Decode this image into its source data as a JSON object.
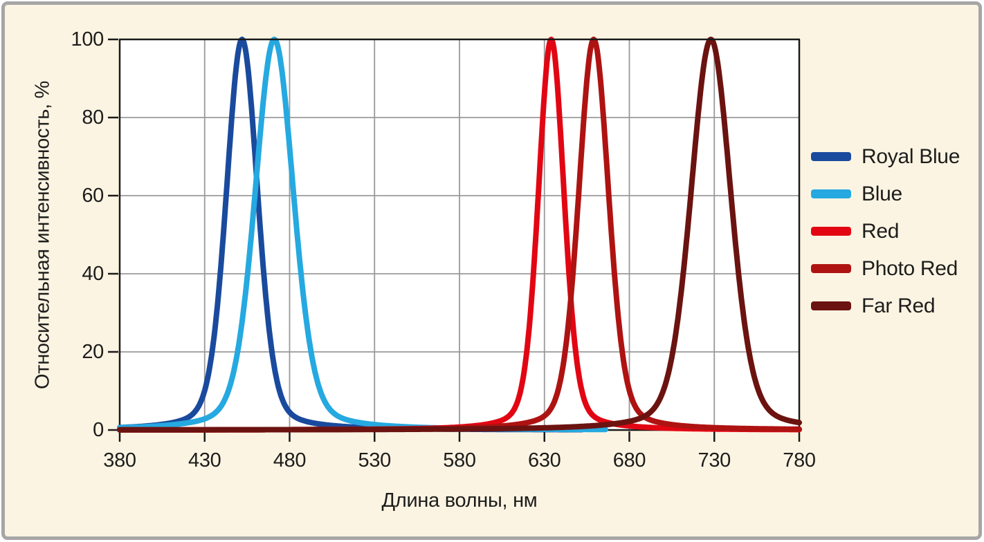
{
  "figure": {
    "background": "#fcf4e3",
    "frame_border_color": "#a6a6a6",
    "outer_background": "#ffffff"
  },
  "chart_data": {
    "type": "line",
    "title": "",
    "xlabel": "Длина волны, нм",
    "ylabel": "Относительная интенсивность, %",
    "xlim": [
      380,
      780
    ],
    "ylim": [
      0,
      100
    ],
    "x_ticks": [
      380,
      430,
      480,
      530,
      580,
      630,
      680,
      730,
      780
    ],
    "y_ticks": [
      0,
      20,
      40,
      60,
      80,
      100
    ],
    "grid": true,
    "grid_color": "#999999",
    "plot_background": "#ffffff",
    "axis_color": "#1a1a1a",
    "text_color": "#1d1d1b",
    "legend_position": "right-outside",
    "curve_profile": {
      "shape": "pseudo-voigt",
      "lorentz_fraction": 0.28,
      "note": "relative intensity = 100 * [(1-f)*exp(-4ln2*((x-peak)/fwhm)^2) + f/(1+4*((x-peak)/fwhm)^2)]"
    },
    "series": [
      {
        "name": "Royal Blue",
        "color": "#1a4a9d",
        "peak_nm": 452,
        "fwhm_nm": 22,
        "peak_intensity_pct": 100,
        "x_start": 380,
        "x_end": 652
      },
      {
        "name": "Blue",
        "color": "#25a9e0",
        "peak_nm": 471,
        "fwhm_nm": 27,
        "peak_intensity_pct": 100,
        "x_start": 380,
        "x_end": 666
      },
      {
        "name": "Red",
        "color": "#e20613",
        "peak_nm": 634,
        "fwhm_nm": 18,
        "peak_intensity_pct": 100,
        "x_start": 380,
        "x_end": 780
      },
      {
        "name": "Photo Red",
        "color": "#ae1312",
        "peak_nm": 659,
        "fwhm_nm": 21,
        "peak_intensity_pct": 100,
        "x_start": 380,
        "x_end": 780
      },
      {
        "name": "Far Red",
        "color": "#6b1310",
        "peak_nm": 728,
        "fwhm_nm": 28,
        "peak_intensity_pct": 100,
        "x_start": 380,
        "x_end": 780
      }
    ]
  }
}
